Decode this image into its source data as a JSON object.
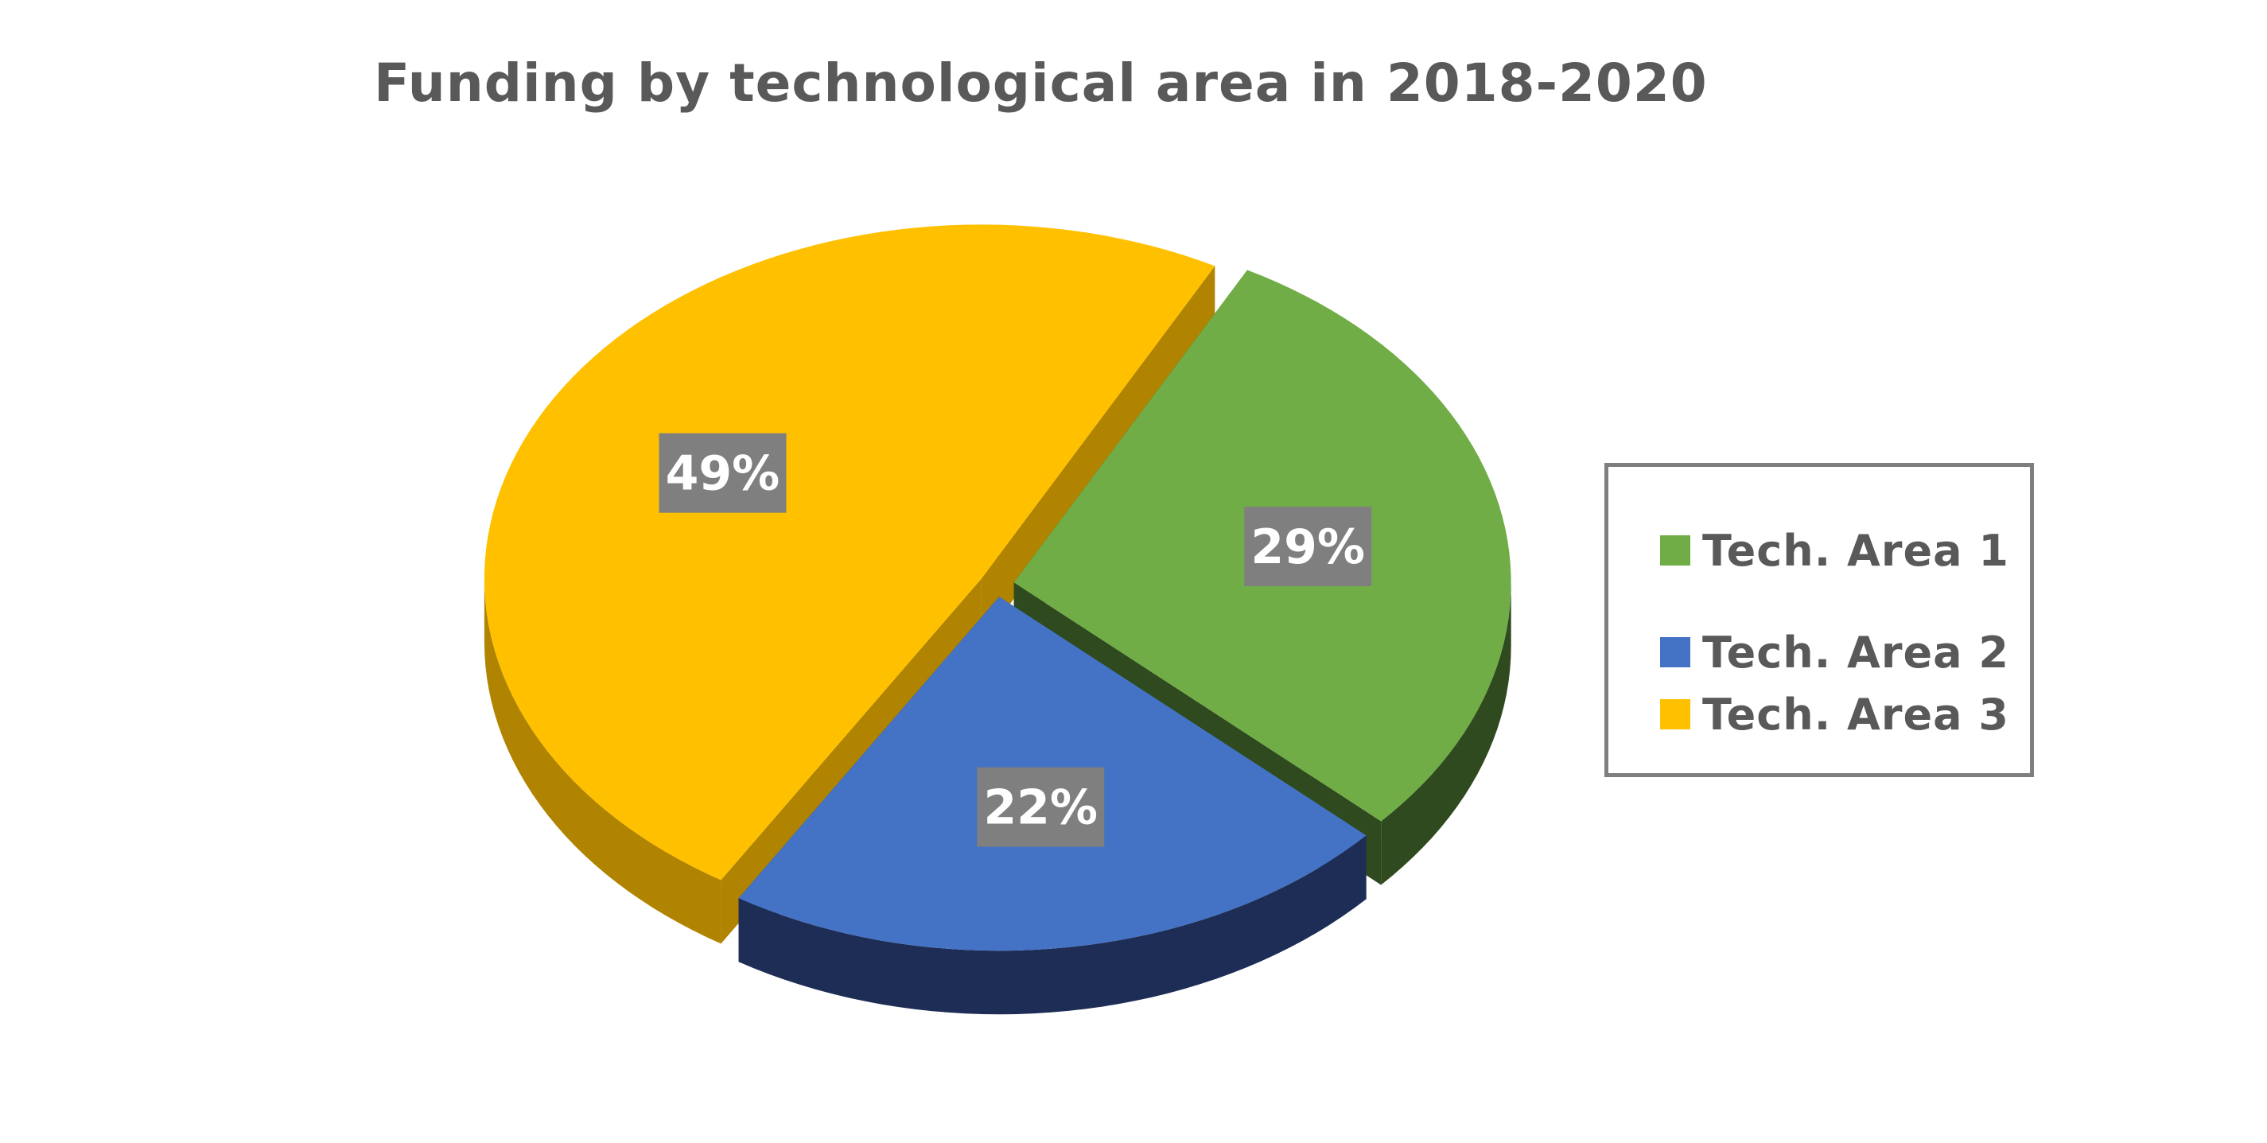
{
  "chart_data": {
    "type": "pie",
    "title": "Funding by technological area in 2018-2020",
    "categories": [
      "Tech. Area 1",
      "Tech. Area 2",
      "Tech. Area 3"
    ],
    "values": [
      29,
      22,
      49
    ],
    "data_labels": [
      "29%",
      "22%",
      "49%"
    ],
    "colors": [
      "#70ad47",
      "#4472c4",
      "#ffc000"
    ],
    "side_colors": [
      "#2f4a1e",
      "#1d2d55",
      "#b08400"
    ],
    "legend_position": "right",
    "style": "3d-exploded",
    "grid": false
  }
}
